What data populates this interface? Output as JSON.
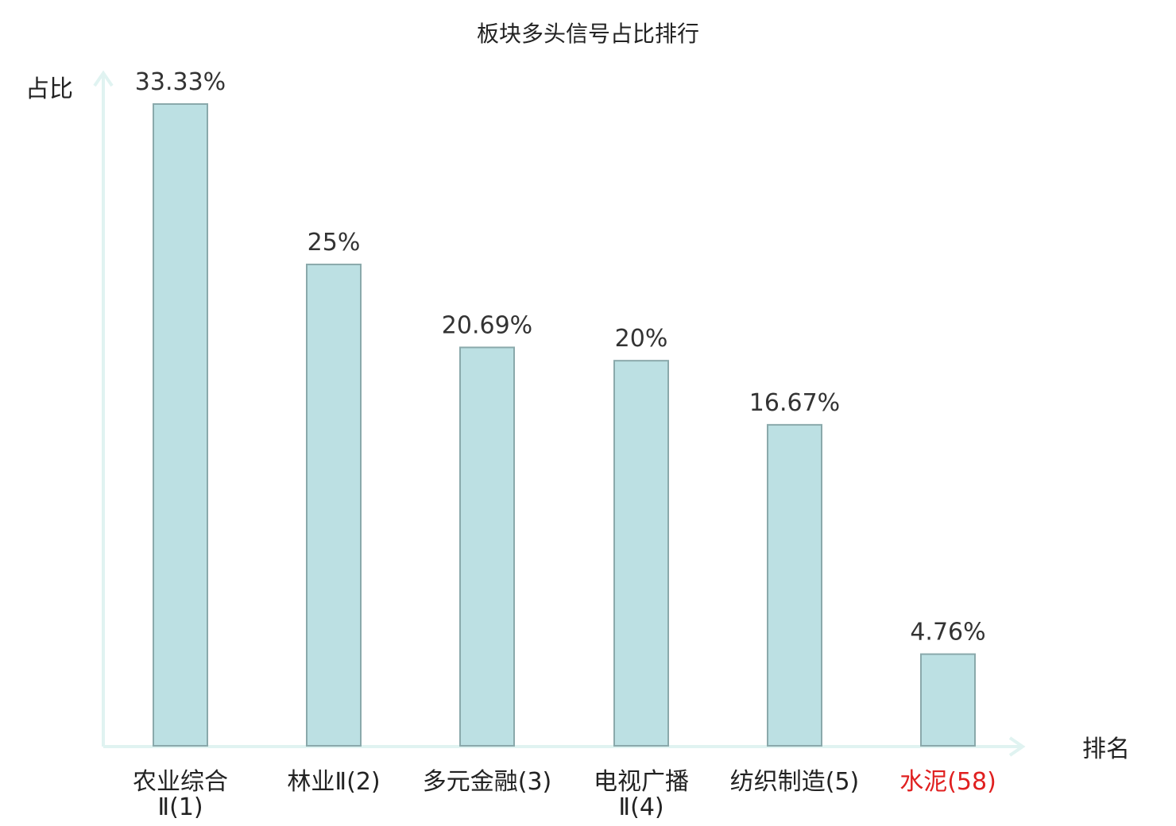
{
  "chart_data": {
    "type": "bar",
    "title": "板块多头信号占比排行",
    "ylabel": "占比",
    "xlabel": "排名",
    "ylim": [
      0,
      35
    ],
    "grid": false,
    "categories": [
      {
        "line1": "农业综合",
        "line2": "Ⅱ(1)"
      },
      {
        "line1": "林业Ⅱ(2)",
        "line2": ""
      },
      {
        "line1": "多元金融(3)",
        "line2": ""
      },
      {
        "line1": "电视广播",
        "line2": "Ⅱ(4)"
      },
      {
        "line1": "纺织制造(5)",
        "line2": ""
      },
      {
        "line1": "水泥(58)",
        "line2": ""
      }
    ],
    "values": [
      33.33,
      25,
      20.69,
      20,
      16.67,
      4.76
    ],
    "value_labels": [
      "33.33%",
      "25%",
      "20.69%",
      "20%",
      "16.67%",
      "4.76%"
    ],
    "highlight_index": 5,
    "colors": {
      "bar_fill": "#bce0e3",
      "bar_stroke": "#8aa9ab",
      "axis": "#e0f3f1",
      "text": "#333333",
      "highlight_text": "#e02020"
    }
  }
}
